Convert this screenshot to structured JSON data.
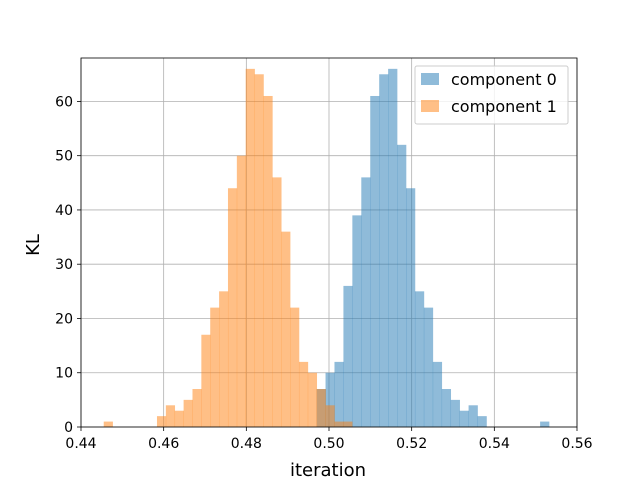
{
  "chart_data": {
    "type": "histogram",
    "xlabel": "iteration",
    "ylabel": "KL",
    "xlim": [
      0.44,
      0.56
    ],
    "ylim": [
      0,
      68
    ],
    "x_ticks": [
      "0.44",
      "0.46",
      "0.48",
      "0.50",
      "0.52",
      "0.54",
      "0.56"
    ],
    "x_tick_values": [
      0.44,
      0.46,
      0.48,
      0.5,
      0.52,
      0.54,
      0.56
    ],
    "y_ticks": [
      "0",
      "10",
      "20",
      "30",
      "40",
      "50",
      "60"
    ],
    "y_tick_values": [
      0,
      10,
      20,
      30,
      40,
      50,
      60
    ],
    "grid": true,
    "legend_position": "top-right",
    "series": [
      {
        "name": "component 0",
        "color": "#1f77b4",
        "alpha": 0.5,
        "bin_start": 0.497,
        "bin_width": 0.002163,
        "counts": [
          7,
          10,
          12,
          26,
          39,
          46,
          61,
          65,
          66,
          52,
          44,
          25,
          22,
          12,
          7,
          5,
          3,
          4,
          2,
          0,
          0,
          0,
          0,
          0,
          0,
          1
        ]
      },
      {
        "name": "component 1",
        "color": "#ff7f0e",
        "alpha": 0.5,
        "bin_start": 0.4455,
        "bin_width": 0.002147,
        "counts": [
          1,
          0,
          0,
          0,
          0,
          0,
          2,
          4,
          3,
          5,
          7,
          17,
          22,
          25,
          44,
          50,
          66,
          65,
          61,
          46,
          36,
          22,
          12,
          10,
          7,
          4,
          1,
          1
        ]
      }
    ]
  }
}
